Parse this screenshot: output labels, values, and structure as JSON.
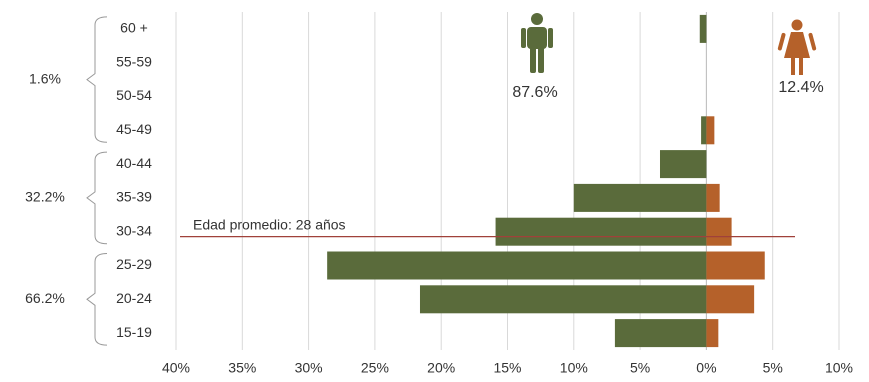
{
  "chart_data": {
    "type": "pyramid",
    "categories": [
      "60 +",
      "55-59",
      "50-54",
      "45-49",
      "40-44",
      "35-39",
      "30-34",
      "25-29",
      "20-24",
      "15-19"
    ],
    "series": [
      {
        "color": "#5a6b3b",
        "values": [
          -0.5,
          0,
          0,
          -0.4,
          -3.5,
          -10.0,
          -15.9,
          -28.6,
          -21.6,
          -6.9
        ]
      },
      {
        "color": "#b5612a",
        "values": [
          0,
          0,
          0,
          0.6,
          0,
          1.0,
          1.9,
          4.4,
          3.6,
          0.9
        ]
      }
    ],
    "xlim": [
      -40,
      10
    ],
    "xticks": [
      {
        "value": -40,
        "label": "40%"
      },
      {
        "value": -35,
        "label": "35%"
      },
      {
        "value": -30,
        "label": "30%"
      },
      {
        "value": -25,
        "label": "25%"
      },
      {
        "value": -20,
        "label": "20%"
      },
      {
        "value": -15,
        "label": "15%"
      },
      {
        "value": -10,
        "label": "10%"
      },
      {
        "value": -5,
        "label": "5%"
      },
      {
        "value": 0,
        "label": "0%"
      },
      {
        "value": 5,
        "label": "5%"
      },
      {
        "value": 10,
        "label": "10%"
      }
    ],
    "grid": true,
    "group_labels": [
      "1.6%",
      "32.2%",
      "66.2%"
    ],
    "male_share": "87.6%",
    "female_share": "12.4%",
    "average_label": "Edad promedio: 28 años"
  }
}
